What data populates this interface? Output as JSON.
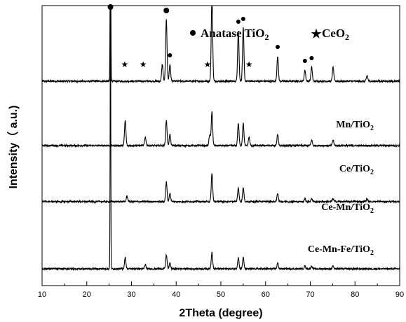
{
  "chart_data": {
    "type": "line",
    "title": "",
    "xlabel": "2Theta (degree)",
    "ylabel": "Intensity（ a.u.)",
    "xlim": [
      10,
      90
    ],
    "xticks": [
      10,
      20,
      30,
      40,
      50,
      60,
      70,
      80,
      90
    ],
    "y_ticks_shown": false,
    "legend": {
      "placement": "top-right",
      "items": [
        {
          "marker": "circle",
          "text": "Anatase TiO",
          "sub": "2"
        },
        {
          "marker": "star",
          "text": "CeO",
          "sub": "2"
        }
      ]
    },
    "series": [
      {
        "name": "Mn/TiO",
        "name_sub": "2",
        "baseline": 0.73,
        "peaks": [
          [
            25.3,
            1.0
          ],
          [
            36.9,
            0.06
          ],
          [
            37.8,
            0.22
          ],
          [
            38.6,
            0.06
          ],
          [
            48.0,
            0.31
          ],
          [
            53.9,
            0.18
          ],
          [
            55.0,
            0.19
          ],
          [
            62.7,
            0.09
          ],
          [
            68.8,
            0.04
          ],
          [
            70.3,
            0.05
          ],
          [
            75.1,
            0.05
          ],
          [
            82.7,
            0.02
          ]
        ],
        "circle_markers": [
          25.3,
          37.8,
          38.6,
          48.0,
          53.9,
          55.0,
          62.7,
          68.8,
          70.3
        ],
        "star_markers": [
          28.5,
          32.6,
          47.0,
          56.3
        ]
      },
      {
        "name": "Ce/TiO",
        "name_sub": "2",
        "baseline": 0.5,
        "peaks": [
          [
            28.6,
            0.09
          ],
          [
            33.1,
            0.03
          ],
          [
            37.8,
            0.09
          ],
          [
            38.6,
            0.04
          ],
          [
            47.5,
            0.04
          ],
          [
            48.0,
            0.12
          ],
          [
            53.9,
            0.08
          ],
          [
            55.0,
            0.08
          ],
          [
            56.3,
            0.03
          ],
          [
            62.7,
            0.04
          ],
          [
            70.3,
            0.02
          ],
          [
            75.1,
            0.02
          ]
        ],
        "circle_markers": [],
        "star_markers": []
      },
      {
        "name": "Ce-Mn/TiO",
        "name_sub": "2",
        "baseline": 0.3,
        "peaks": [
          [
            29.0,
            0.02
          ],
          [
            37.8,
            0.07
          ],
          [
            38.6,
            0.03
          ],
          [
            48.0,
            0.1
          ],
          [
            53.9,
            0.05
          ],
          [
            55.0,
            0.05
          ],
          [
            62.7,
            0.03
          ],
          [
            68.8,
            0.01
          ],
          [
            70.3,
            0.01
          ],
          [
            75.1,
            0.01
          ],
          [
            82.7,
            0.01
          ]
        ],
        "circle_markers": [],
        "star_markers": []
      },
      {
        "name": "Ce-Mn-Fe/TiO",
        "name_sub": "2",
        "baseline": 0.06,
        "peaks": [
          [
            25.3,
            0.95
          ],
          [
            28.6,
            0.04
          ],
          [
            33.1,
            0.015
          ],
          [
            37.8,
            0.05
          ],
          [
            38.6,
            0.02
          ],
          [
            48.0,
            0.06
          ],
          [
            53.9,
            0.04
          ],
          [
            55.0,
            0.04
          ],
          [
            62.7,
            0.02
          ],
          [
            68.8,
            0.01
          ],
          [
            70.3,
            0.01
          ],
          [
            75.1,
            0.01
          ]
        ],
        "circle_markers": [],
        "star_markers": []
      }
    ]
  }
}
